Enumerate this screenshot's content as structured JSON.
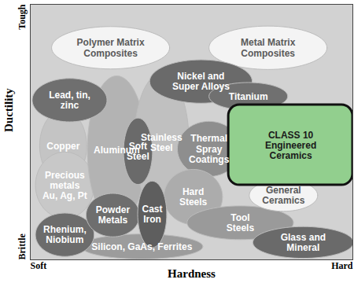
{
  "chart_data": {
    "type": "region",
    "x_label": "Hardness",
    "y_label": "Ductility",
    "xlim": [
      0,
      100
    ],
    "ylim": [
      0,
      100
    ],
    "xticks": [
      {
        "value": 0,
        "label": "Soft"
      },
      {
        "value": 100,
        "label": "Hard"
      }
    ],
    "yticks": [
      {
        "value": 0,
        "label": "Brittle"
      },
      {
        "value": 100,
        "label": "Tough"
      }
    ],
    "grid": false,
    "regions": [
      {
        "name": "Polymer Matrix\nComposites",
        "x": 24.9,
        "y": 83,
        "rx": 18.3,
        "ry": 8.3,
        "color": "#f4f4f4",
        "marker": "ellipse"
      },
      {
        "name": "Metal Matrix\nComposites",
        "x": 73.7,
        "y": 83,
        "rx": 18.3,
        "ry": 8.5,
        "color": "#f4f4f4",
        "marker": "ellipse"
      },
      {
        "name": "Copper",
        "x": 10.2,
        "y": 44.6,
        "rx": 7.3,
        "ry": 14,
        "color": "#c4c4c4",
        "marker": "ellipse"
      },
      {
        "name": "Precious\nmetals\nAu, Ag, Pt",
        "x": 10.7,
        "y": 29.2,
        "rx": 9.1,
        "ry": 13,
        "color": "#c8c8c8",
        "marker": "ellipse"
      },
      {
        "name": "Aluminum",
        "x": 26.8,
        "y": 43,
        "rx": 9.1,
        "ry": 29,
        "color": "#b3b3b3",
        "marker": "ellipse"
      },
      {
        "name": "Stainless\nSteel",
        "x": 40.7,
        "y": 46,
        "rx": 8.5,
        "ry": 27,
        "color": "#c0c0c0",
        "marker": "ellipse"
      },
      {
        "name": "Lead, tin,\nzinc",
        "x": 12.2,
        "y": 62.5,
        "rx": 11.6,
        "ry": 8.5,
        "color": "#6f6f6f",
        "marker": "ellipse"
      },
      {
        "name": "Nickel and\nSuper Alloys",
        "x": 52.9,
        "y": 69.8,
        "rx": 15.9,
        "ry": 8.5,
        "color": "#6a6a6a",
        "marker": "ellipse"
      },
      {
        "name": "Titanium",
        "x": 67.6,
        "y": 64,
        "rx": 12.2,
        "ry": 5.4,
        "color": "#707070",
        "marker": "ellipse"
      },
      {
        "name": "Thermal\nSpray\nCoatings",
        "x": 55.4,
        "y": 43.4,
        "rx": 9.8,
        "ry": 10.8,
        "color": "#8e8e8e",
        "marker": "ellipse"
      },
      {
        "name": "Hard\nSteels",
        "x": 50.5,
        "y": 24.6,
        "rx": 9.1,
        "ry": 10.8,
        "color": "#acacac",
        "marker": "ellipse"
      },
      {
        "name": "Tool\nSteels",
        "x": 65.1,
        "y": 14.5,
        "rx": 16.5,
        "ry": 6.6,
        "color": "#9a9a9a",
        "marker": "ellipse"
      },
      {
        "name": "General\nCeramics",
        "x": 78.5,
        "y": 25.2,
        "rx": 10.6,
        "ry": 6.2,
        "color": "#f4f4f4",
        "marker": "ellipse"
      },
      {
        "name": "CLASS 10\nEngineered\nCeramics",
        "x": 80.75,
        "y": 44.9,
        "rx": 19.25,
        "ry": 15.7,
        "color": "#92cf8e",
        "marker": "box"
      },
      {
        "name": "Silicon, GaAs, Ferrites",
        "x": 34.6,
        "y": 5.2,
        "rx": 18.9,
        "ry": 4.9,
        "color": "#9c9c9c",
        "marker": "ellipse"
      },
      {
        "name": "Rhenium,\nNiobium",
        "x": 10.7,
        "y": 9.8,
        "rx": 9.1,
        "ry": 8.5,
        "color": "#6c6c6c",
        "marker": "ellipse"
      },
      {
        "name": "Powder\nMetals",
        "x": 25.6,
        "y": 17.5,
        "rx": 8.3,
        "ry": 8.5,
        "color": "#6e6e6e",
        "marker": "ellipse"
      },
      {
        "name": "Cast\nIron",
        "x": 37.8,
        "y": 17.8,
        "rx": 4.5,
        "ry": 13,
        "color": "#5e5e5e",
        "marker": "ellipse"
      },
      {
        "name": "Soft\nSteel",
        "x": 33.4,
        "y": 42.5,
        "rx": 4.5,
        "ry": 13,
        "color": "#6a6a6a",
        "marker": "ellipse"
      },
      {
        "name": "Glass and\nMineral",
        "x": 84.6,
        "y": 6.8,
        "rx": 15.6,
        "ry": 6.2,
        "color": "#6a6a6a",
        "marker": "ellipse"
      }
    ]
  }
}
